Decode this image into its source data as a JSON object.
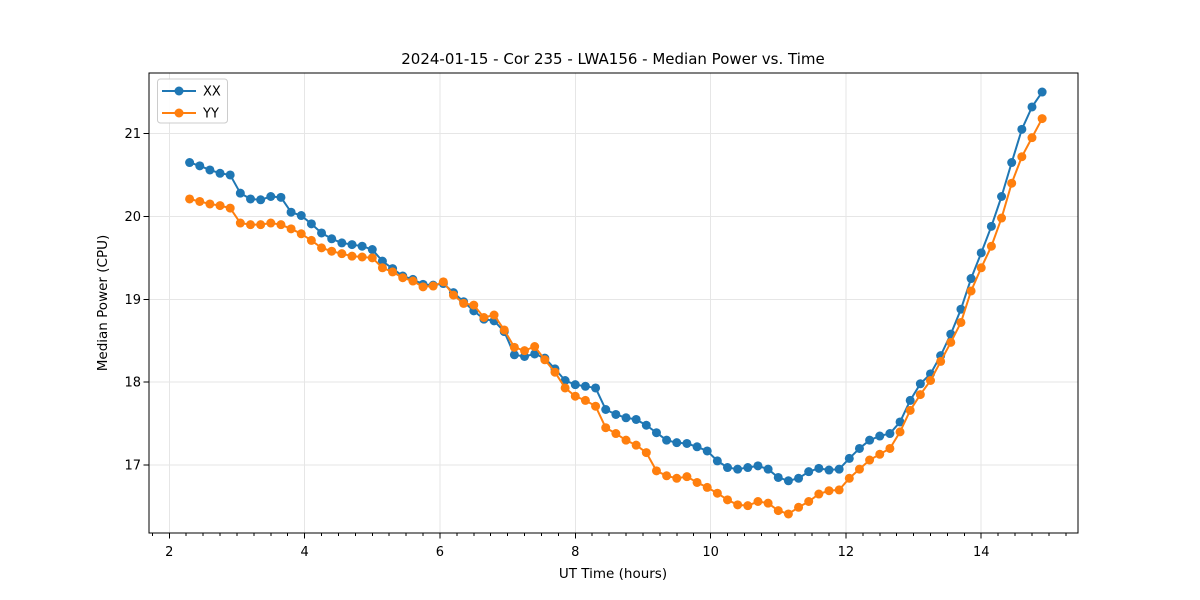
{
  "chart_data": {
    "type": "line",
    "title": "2024-01-15 - Cor 235 - LWA156 - Median Power vs. Time",
    "xlabel": "UT Time (hours)",
    "ylabel": "Median Power (CPU)",
    "xlim": [
      1.7,
      15.43
    ],
    "ylim": [
      16.18,
      21.73
    ],
    "xticks": [
      2,
      4,
      6,
      8,
      10,
      12,
      14
    ],
    "x_minor_tick_step": 0.25,
    "yticks": [
      17,
      18,
      19,
      20,
      21
    ],
    "grid": true,
    "grid_color": "#e6e6e6",
    "axis_color": "#000000",
    "background_color": "#ffffff",
    "legend": {
      "position": "upper left",
      "entries": [
        "XX",
        "YY"
      ]
    },
    "x": [
      2.3,
      2.45,
      2.6,
      2.75,
      2.9,
      3.05,
      3.2,
      3.35,
      3.5,
      3.65,
      3.8,
      3.95,
      4.1,
      4.25,
      4.4,
      4.55,
      4.7,
      4.85,
      5,
      5.15,
      5.3,
      5.45,
      5.6,
      5.75,
      5.9,
      6.05,
      6.2,
      6.35,
      6.5,
      6.65,
      6.8,
      6.95,
      7.1,
      7.25,
      7.4,
      7.55,
      7.7,
      7.85,
      8,
      8.15,
      8.3,
      8.45,
      8.6,
      8.75,
      8.9,
      9.05,
      9.2,
      9.35,
      9.5,
      9.65,
      9.8,
      9.95,
      10.1,
      10.25,
      10.4,
      10.55,
      10.7,
      10.85,
      11,
      11.15,
      11.3,
      11.45,
      11.6,
      11.75,
      11.9,
      12.05,
      12.2,
      12.35,
      12.5,
      12.65,
      12.8,
      12.95,
      13.1,
      13.25,
      13.4,
      13.55,
      13.7,
      13.85,
      14,
      14.15,
      14.3,
      14.45,
      14.6,
      14.75,
      14.9
    ],
    "series": [
      {
        "name": "XX",
        "color": "#1f77b4",
        "marker": "circle",
        "values": [
          20.65,
          20.61,
          20.56,
          20.52,
          20.5,
          20.28,
          20.21,
          20.2,
          20.24,
          20.23,
          20.05,
          20.01,
          19.91,
          19.8,
          19.73,
          19.68,
          19.66,
          19.64,
          19.6,
          19.46,
          19.37,
          19.28,
          19.24,
          19.18,
          19.17,
          19.19,
          19.08,
          18.97,
          18.86,
          18.76,
          18.74,
          18.61,
          18.33,
          18.31,
          18.34,
          18.29,
          18.16,
          18.02,
          17.97,
          17.95,
          17.93,
          17.67,
          17.61,
          17.57,
          17.55,
          17.48,
          17.39,
          17.3,
          17.27,
          17.26,
          17.22,
          17.17,
          17.05,
          16.97,
          16.95,
          16.97,
          16.99,
          16.95,
          16.85,
          16.81,
          16.84,
          16.92,
          16.96,
          16.94,
          16.95,
          17.08,
          17.2,
          17.3,
          17.35,
          17.38,
          17.52,
          17.78,
          17.98,
          18.1,
          18.32,
          18.58,
          18.88,
          19.25,
          19.56,
          19.88,
          20.24,
          20.65,
          21.05,
          21.32,
          21.5
        ]
      },
      {
        "name": "YY",
        "color": "#ff7f0e",
        "marker": "circle",
        "values": [
          20.21,
          20.18,
          20.15,
          20.13,
          20.1,
          19.92,
          19.9,
          19.9,
          19.92,
          19.9,
          19.85,
          19.79,
          19.71,
          19.62,
          19.58,
          19.55,
          19.52,
          19.51,
          19.5,
          19.38,
          19.33,
          19.26,
          19.22,
          19.15,
          19.16,
          19.21,
          19.05,
          18.95,
          18.93,
          18.78,
          18.81,
          18.63,
          18.42,
          18.38,
          18.43,
          18.27,
          18.12,
          17.93,
          17.83,
          17.78,
          17.71,
          17.45,
          17.38,
          17.3,
          17.24,
          17.15,
          16.93,
          16.87,
          16.84,
          16.86,
          16.79,
          16.73,
          16.66,
          16.58,
          16.52,
          16.51,
          16.56,
          16.54,
          16.45,
          16.41,
          16.49,
          16.56,
          16.65,
          16.69,
          16.7,
          16.84,
          16.95,
          17.06,
          17.13,
          17.2,
          17.4,
          17.66,
          17.85,
          18.02,
          18.25,
          18.48,
          18.72,
          19.1,
          19.38,
          19.64,
          19.98,
          20.4,
          20.72,
          20.95,
          21.18
        ]
      }
    ]
  }
}
